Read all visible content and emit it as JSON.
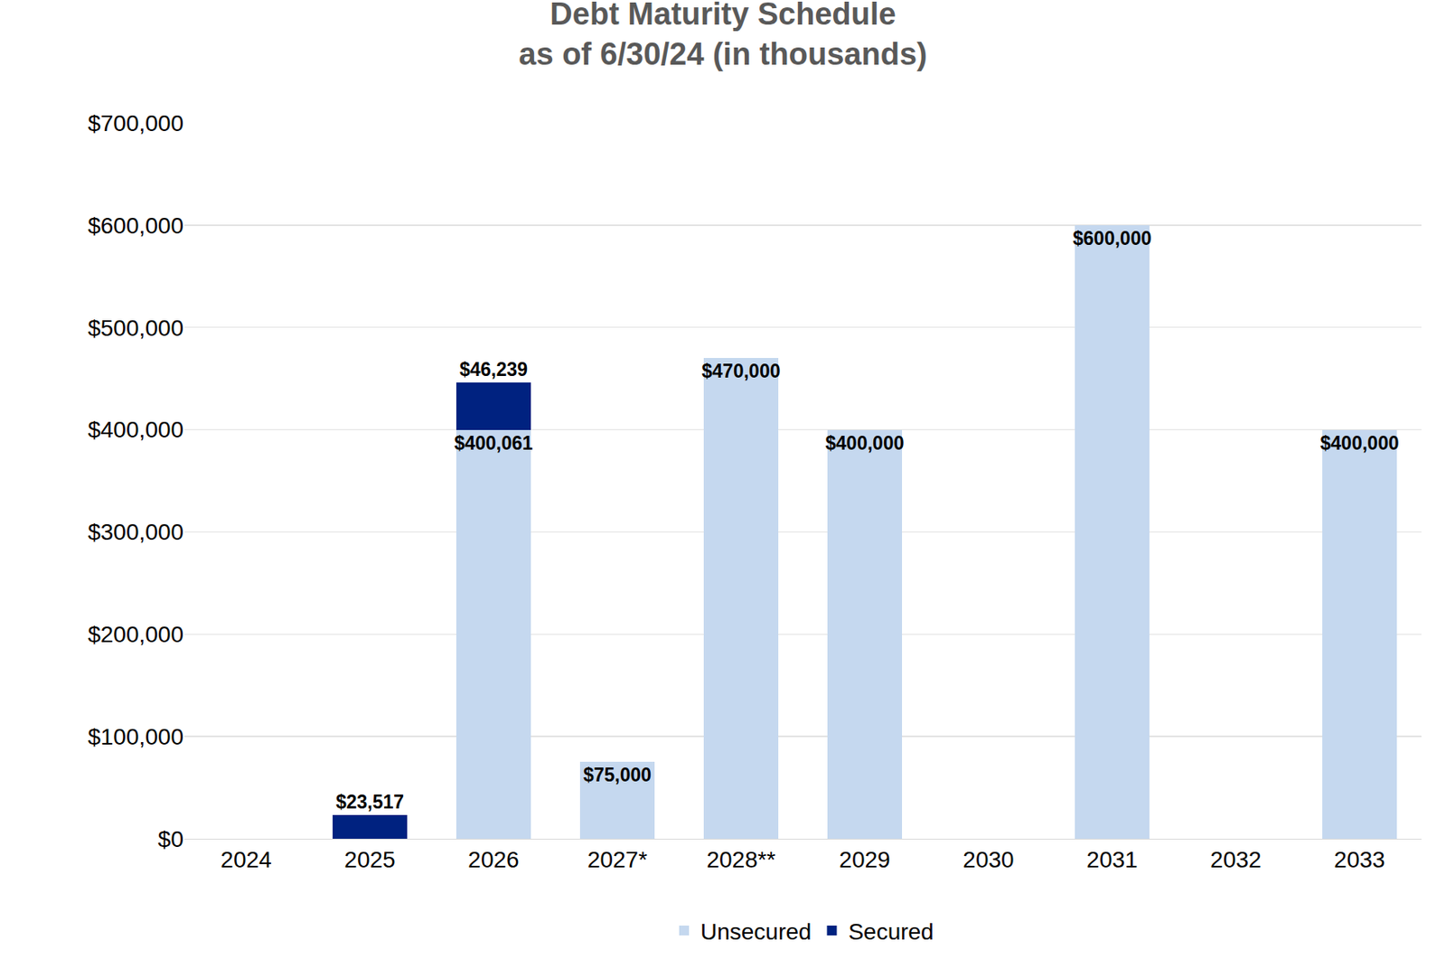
{
  "chart_data": {
    "type": "bar",
    "title": "Debt Maturity Schedule",
    "subtitle": "as of 6/30/24 (in thousands)",
    "categories": [
      "2024",
      "2025",
      "2026",
      "2027*",
      "2028**",
      "2029",
      "2030",
      "2031",
      "2032",
      "2033"
    ],
    "series": [
      {
        "name": "Unsecured",
        "color": "#c5d8ef",
        "values": [
          null,
          null,
          400061,
          75000,
          470000,
          400000,
          null,
          600000,
          null,
          400000
        ],
        "value_labels": [
          null,
          null,
          "$400,061",
          "$75,000",
          "$470,000",
          "$400,000",
          null,
          "$600,000",
          null,
          "$400,000"
        ]
      },
      {
        "name": "Secured",
        "color": "#002280",
        "values": [
          null,
          23517,
          46239,
          null,
          null,
          null,
          null,
          null,
          null,
          null
        ],
        "value_labels": [
          null,
          "$23,517",
          "$46,239",
          null,
          null,
          null,
          null,
          null,
          null,
          null
        ]
      }
    ],
    "ylim": [
      0,
      700000
    ],
    "yticks": [
      {
        "value": 0,
        "label": "$0"
      },
      {
        "value": 100000,
        "label": "$100,000"
      },
      {
        "value": 200000,
        "label": "$200,000"
      },
      {
        "value": 300000,
        "label": "$300,000"
      },
      {
        "value": 400000,
        "label": "$400,000"
      },
      {
        "value": 500000,
        "label": "$500,000"
      },
      {
        "value": 600000,
        "label": "$600,000"
      },
      {
        "value": 700000,
        "label": "$700,000"
      }
    ],
    "stacked": true,
    "data_labels": true,
    "grid": true,
    "legend": "bottom"
  }
}
